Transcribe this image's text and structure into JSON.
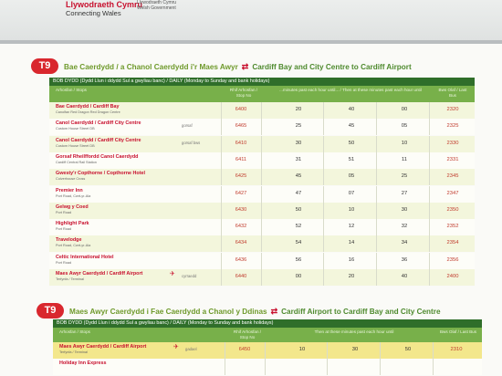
{
  "header": {
    "logo_cy": "Llywodraeth Cymru",
    "logo_en": "Connecting Wales",
    "gov_cy": "Llywodraeth Cymru",
    "gov_en": "Welsh Government"
  },
  "route1": {
    "badge": "T9",
    "title_cy": "Bae Caerdydd / a Chanol Caerdydd i'r Maes Awyr",
    "title_en": "Cardiff Bay and City Centre to Cardiff Airport",
    "band": "BOB DYDD (Dydd Llun i ddydd Sul a gwyliau banc) / DAILY (Monday to Sunday and bank holidays)",
    "hdr_stop": "Arhosfan / Stops",
    "hdr_stopno": "Rhif Arhosfan / Stop No",
    "hdr_times": "...minutes past each hour until... / Then at these minutes past each hour until",
    "hdr_last": "Bws Olaf / Last Bus",
    "rows": [
      {
        "name": "Bae Caerdydd / Cardiff Bay",
        "sub": "Canolfan Red Dragon Red Dragon Centre",
        "note": "",
        "stop_no": "6400",
        "t1": "20",
        "t2": "40",
        "t3": "00",
        "last": "2320"
      },
      {
        "name": "Canol Caerdydd / Cardiff City Centre",
        "sub": "Custom House Street DB",
        "note": "gorsaf",
        "stop_no": "6465",
        "t1": "25",
        "t2": "45",
        "t3": "05",
        "last": "2325"
      },
      {
        "name": "Canol Caerdydd / Cardiff City Centre",
        "sub": "Custom House Street DB",
        "note": "gorsaf bws",
        "stop_no": "6410",
        "t1": "30",
        "t2": "50",
        "t3": "10",
        "last": "2330"
      },
      {
        "name": "Gorsaf Rheilffordd Canol Caerdydd",
        "sub": "Cardiff Central Rail Station",
        "note": "",
        "stop_no": "6411",
        "t1": "31",
        "t2": "51",
        "t3": "11",
        "last": "2331"
      },
      {
        "name": "Gwesty'r Copthorne / Copthorne Hotel",
        "sub": "Culverhouse Cross",
        "note": "",
        "stop_no": "6425",
        "t1": "45",
        "t2": "05",
        "t3": "25",
        "last": "2345"
      },
      {
        "name": "Premier Inn",
        "sub": "Port Road, Cwrt-yr-Ala",
        "note": "",
        "stop_no": "6427",
        "t1": "47",
        "t2": "07",
        "t3": "27",
        "last": "2347"
      },
      {
        "name": "Gelwg y Coed",
        "sub": "Port Road",
        "note": "",
        "stop_no": "6430",
        "t1": "50",
        "t2": "10",
        "t3": "30",
        "last": "2350"
      },
      {
        "name": "Highlight Park",
        "sub": "Port Road",
        "note": "",
        "stop_no": "6432",
        "t1": "52",
        "t2": "12",
        "t3": "32",
        "last": "2352"
      },
      {
        "name": "Travelodge",
        "sub": "Port Road, Cwrt-yr-Ala",
        "note": "",
        "stop_no": "6434",
        "t1": "54",
        "t2": "14",
        "t3": "34",
        "last": "2354"
      },
      {
        "name": "Celtic International Hotel",
        "sub": "Port Road",
        "note": "",
        "stop_no": "6436",
        "t1": "56",
        "t2": "16",
        "t3": "36",
        "last": "2356"
      },
      {
        "name": "Maes Awyr Caerdydd / Cardiff Airport",
        "sub": "Terfynfa / Terminal",
        "note": "cyrraedd",
        "stop_no": "6440",
        "t1": "00",
        "t2": "20",
        "t3": "40",
        "last": "2400"
      }
    ]
  },
  "route2": {
    "badge": "T9",
    "title_cy": "Maes Awyr Caerdydd i Fae Caerdydd a Chanol y Ddinas",
    "title_en": "Cardiff Airport to Cardiff Bay and City Centre",
    "band": "BOB DYDD (Dydd Llun i ddydd Sul a gwyliau banc) / DAILY (Monday to Sunday and bank holidays)",
    "hdr_stop": "Arhosfan / Stops",
    "hdr_stopno": "Rhif Arhosfan / Stop No",
    "hdr_times": "Then at these minutes past each hour until",
    "hdr_last": "Bws Olaf / Last Bus",
    "rows": [
      {
        "name": "Maes Awyr Caerdydd / Cardiff Airport",
        "sub": "Terfynfa / Terminal",
        "note": "gadael",
        "stop_no": "6450",
        "t1": "10",
        "t2": "30",
        "t3": "50",
        "last": "2310"
      },
      {
        "name": "Holiday Inn Express",
        "sub": "",
        "note": "",
        "stop_no": "",
        "t1": "",
        "t2": "",
        "t3": "",
        "last": ""
      }
    ]
  },
  "colors": {
    "accent_red": "#d9272e",
    "band_green": "#2f6e2a",
    "header_green": "#78b04a"
  }
}
